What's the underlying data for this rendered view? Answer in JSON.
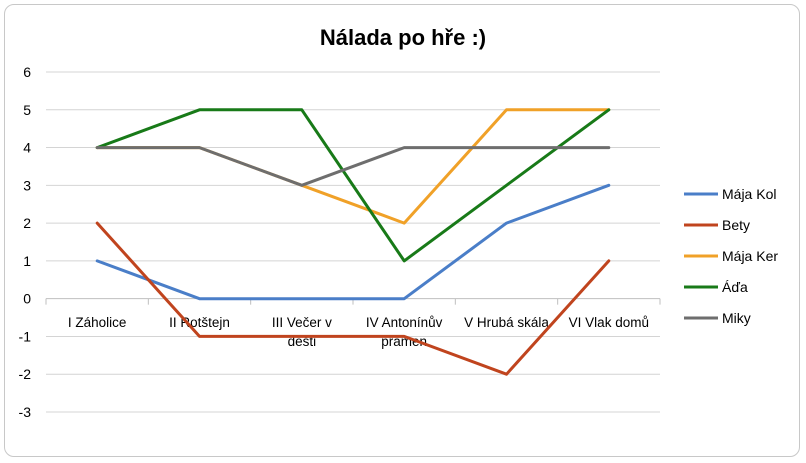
{
  "chart_data": {
    "type": "line",
    "title": "Nálada po hře :)",
    "categories": [
      [
        "I Záholice"
      ],
      [
        "II Rotštejn"
      ],
      [
        "III Večer v",
        "dešti"
      ],
      [
        "IV Antonínův",
        "pramen"
      ],
      [
        "V Hrubá skála"
      ],
      [
        "VI Vlak domů"
      ]
    ],
    "ylim": [
      -3,
      6
    ],
    "yticks": [
      -3,
      -2,
      -1,
      0,
      1,
      2,
      3,
      4,
      5,
      6
    ],
    "grid": true,
    "legend_position": "right",
    "series": [
      {
        "name": "Mája Kol",
        "color": "#4a7ec8",
        "values": [
          1,
          0,
          0,
          0,
          2,
          3
        ]
      },
      {
        "name": "Bety",
        "color": "#c0441e",
        "values": [
          2,
          -1,
          -1,
          -1,
          -2,
          1
        ]
      },
      {
        "name": "Mája Ker",
        "color": "#f0a128",
        "values": [
          4,
          4,
          3,
          2,
          5,
          5
        ]
      },
      {
        "name": "Áďa",
        "color": "#187a18",
        "values": [
          4,
          5,
          5,
          1,
          3,
          5
        ]
      },
      {
        "name": "Miky",
        "color": "#6e6e6e",
        "values": [
          4,
          4,
          3,
          4,
          4,
          4
        ]
      }
    ]
  }
}
